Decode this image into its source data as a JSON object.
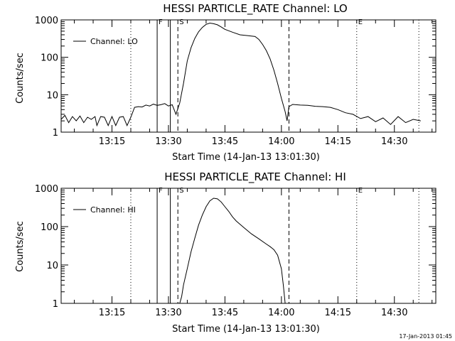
{
  "chart_data": [
    {
      "type": "line",
      "title": "HESSI PARTICLE_RATE Channel: LO",
      "xlabel": "Start Time (14-Jan-13 13:01:30)",
      "ylabel": "Counts/sec",
      "yscale": "log",
      "ylim": [
        1,
        1000
      ],
      "y_ticks": [
        "1",
        "10",
        "100",
        "1000"
      ],
      "xlim": [
        "13:01:30",
        "14:41:00"
      ],
      "x_ticks": [
        "13:15",
        "13:30",
        "13:45",
        "14:00",
        "14:15",
        "14:30"
      ],
      "legend": {
        "position": "top-left",
        "entries": [
          "Channel: LO"
        ]
      },
      "grid": false,
      "markers": [
        {
          "label": "F",
          "time": "13:27:00",
          "style": "solid"
        },
        {
          "label": "",
          "time": "13:30:30",
          "style": "solid"
        },
        {
          "label": "S",
          "time": "13:32:30",
          "style": "dashed"
        },
        {
          "label": "",
          "time": "14:02:00",
          "style": "dashed"
        },
        {
          "label": "",
          "time": "13:20:00",
          "style": "dotted"
        },
        {
          "label": "E",
          "time": "14:20:00",
          "style": "dotted"
        },
        {
          "label": "",
          "time": "14:36:30",
          "style": "dotted"
        }
      ],
      "series": [
        {
          "name": "Channel: LO",
          "x": [
            "13:01:30",
            "13:02:30",
            "13:03:30",
            "13:04:30",
            "13:05:30",
            "13:06:30",
            "13:07:30",
            "13:08:30",
            "13:09:30",
            "13:10:30",
            "13:11:00",
            "13:12:00",
            "13:13:00",
            "13:14:00",
            "13:15:00",
            "13:16:00",
            "13:17:00",
            "13:18:00",
            "13:19:00",
            "13:20:00",
            "13:21:00",
            "13:22:00",
            "13:23:00",
            "13:24:00",
            "13:25:00",
            "13:26:00",
            "13:27:00",
            "13:28:00",
            "13:29:00",
            "13:30:00",
            "13:31:00",
            "13:32:00",
            "13:33:00",
            "13:34:00",
            "13:35:00",
            "13:36:00",
            "13:37:00",
            "13:38:00",
            "13:39:00",
            "13:40:00",
            "13:41:00",
            "13:42:00",
            "13:43:00",
            "13:44:00",
            "13:45:00",
            "13:47:00",
            "13:49:00",
            "13:51:00",
            "13:53:00",
            "13:54:00",
            "13:55:00",
            "13:56:00",
            "13:57:00",
            "13:58:00",
            "13:59:00",
            "14:00:00",
            "14:01:00",
            "14:01:30",
            "14:02:00",
            "14:03:00",
            "14:05:00",
            "14:07:00",
            "14:09:00",
            "14:11:00",
            "14:13:00",
            "14:15:00",
            "14:17:00",
            "14:19:00",
            "14:21:00",
            "14:23:00",
            "14:25:00",
            "14:27:00",
            "14:29:00",
            "14:31:00",
            "14:33:00",
            "14:35:00",
            "14:37:00"
          ],
          "y": [
            2.2,
            2.8,
            1.8,
            2.6,
            2.0,
            2.7,
            1.8,
            2.5,
            2.2,
            2.6,
            1.5,
            2.6,
            2.5,
            1.5,
            2.6,
            1.5,
            2.5,
            2.6,
            1.5,
            2.5,
            4.6,
            4.8,
            4.7,
            5.3,
            5.0,
            5.6,
            5.2,
            5.4,
            5.8,
            5.0,
            5.4,
            3.0,
            6.0,
            20,
            80,
            180,
            320,
            480,
            630,
            760,
            820,
            790,
            740,
            650,
            560,
            470,
            400,
            380,
            360,
            300,
            220,
            150,
            90,
            45,
            20,
            8,
            3.5,
            2.0,
            4.8,
            5.5,
            5.3,
            5.2,
            4.9,
            4.8,
            4.6,
            4.0,
            3.3,
            3.0,
            2.3,
            2.6,
            1.9,
            2.4,
            1.6,
            2.6,
            1.8,
            2.2,
            2.0
          ]
        }
      ]
    },
    {
      "type": "line",
      "title": "HESSI PARTICLE_RATE Channel: HI",
      "xlabel": "Start Time (14-Jan-13 13:01:30)",
      "ylabel": "Counts/sec",
      "yscale": "log",
      "ylim": [
        1,
        1000
      ],
      "y_ticks": [
        "1",
        "10",
        "100",
        "1000"
      ],
      "xlim": [
        "13:01:30",
        "14:41:00"
      ],
      "x_ticks": [
        "13:15",
        "13:30",
        "13:45",
        "14:00",
        "14:15",
        "14:30"
      ],
      "legend": {
        "position": "top-left",
        "entries": [
          "Channel: HI"
        ]
      },
      "grid": false,
      "markers": [
        {
          "label": "F",
          "time": "13:27:00",
          "style": "solid"
        },
        {
          "label": "",
          "time": "13:30:30",
          "style": "solid"
        },
        {
          "label": "S",
          "time": "13:32:30",
          "style": "dashed"
        },
        {
          "label": "",
          "time": "14:02:00",
          "style": "dashed"
        },
        {
          "label": "",
          "time": "13:20:00",
          "style": "dotted"
        },
        {
          "label": "E",
          "time": "14:20:00",
          "style": "dotted"
        },
        {
          "label": "",
          "time": "14:36:30",
          "style": "dotted"
        }
      ],
      "series": [
        {
          "name": "Channel: HI",
          "x": [
            "13:33:00",
            "13:33:30",
            "13:34:00",
            "13:35:00",
            "13:36:00",
            "13:37:00",
            "13:38:00",
            "13:39:00",
            "13:40:00",
            "13:41:00",
            "13:42:00",
            "13:43:00",
            "13:44:00",
            "13:45:00",
            "13:46:00",
            "13:47:00",
            "13:48:00",
            "13:50:00",
            "13:52:00",
            "13:54:00",
            "13:56:00",
            "13:57:00",
            "13:58:00",
            "13:59:00",
            "14:00:00",
            "14:00:30",
            "14:01:00"
          ],
          "y": [
            1.0,
            1.5,
            3.0,
            8,
            22,
            50,
            110,
            200,
            330,
            470,
            550,
            530,
            440,
            330,
            250,
            180,
            140,
            95,
            65,
            48,
            35,
            30,
            25,
            18,
            8,
            3,
            1.0
          ]
        }
      ]
    }
  ],
  "footer": {
    "timestamp": "17-Jan-2013 01:45"
  }
}
